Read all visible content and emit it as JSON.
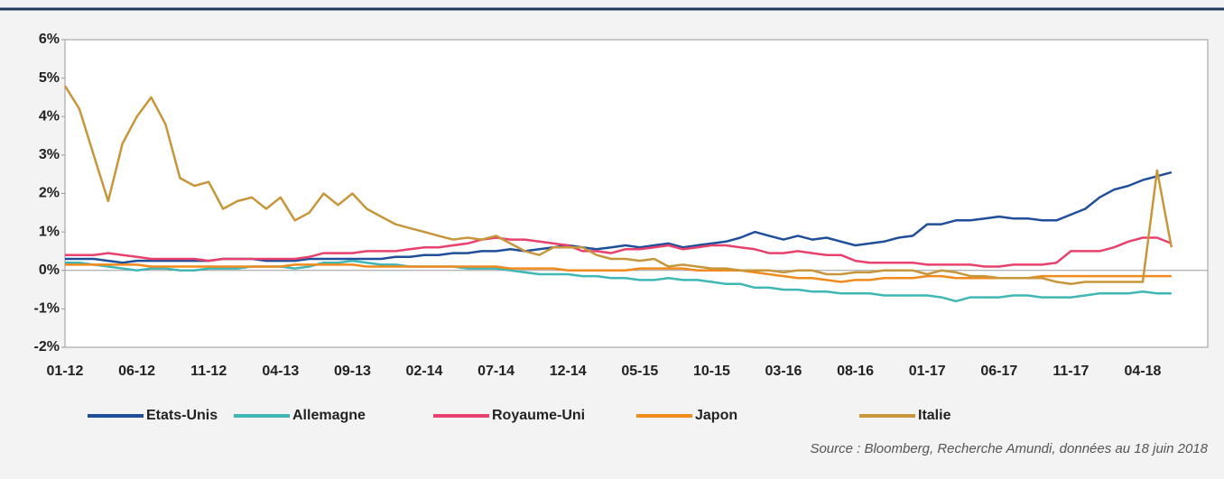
{
  "chart_data": {
    "type": "line",
    "categories": [
      "01-12",
      null,
      null,
      null,
      null,
      "06-12",
      null,
      null,
      null,
      null,
      "11-12",
      null,
      null,
      null,
      null,
      "04-13",
      null,
      null,
      null,
      null,
      "09-13",
      null,
      null,
      null,
      null,
      "02-14",
      null,
      null,
      null,
      null,
      "07-14",
      null,
      null,
      null,
      null,
      "12-14",
      null,
      null,
      null,
      null,
      "05-15",
      null,
      null,
      null,
      null,
      "10-15",
      null,
      null,
      null,
      null,
      "03-16",
      null,
      null,
      null,
      null,
      "08-16",
      null,
      null,
      null,
      null,
      "01-17",
      null,
      null,
      null,
      null,
      "06-17",
      null,
      null,
      null,
      null,
      "11-17",
      null,
      null,
      null,
      null,
      "04-18",
      null,
      null
    ],
    "series": [
      {
        "name": "Etats-Unis",
        "color": "#1f4e9a",
        "values": [
          0.3,
          0.3,
          0.3,
          0.25,
          0.2,
          0.25,
          0.25,
          0.25,
          0.25,
          0.25,
          0.25,
          0.3,
          0.3,
          0.3,
          0.25,
          0.25,
          0.25,
          0.3,
          0.3,
          0.3,
          0.3,
          0.3,
          0.3,
          0.35,
          0.35,
          0.4,
          0.4,
          0.45,
          0.45,
          0.5,
          0.5,
          0.55,
          0.5,
          0.55,
          0.6,
          0.65,
          0.6,
          0.55,
          0.6,
          0.65,
          0.6,
          0.65,
          0.7,
          0.6,
          0.65,
          0.7,
          0.75,
          0.85,
          1.0,
          0.9,
          0.8,
          0.9,
          0.8,
          0.85,
          0.75,
          0.65,
          0.7,
          0.75,
          0.85,
          0.9,
          1.2,
          1.2,
          1.3,
          1.3,
          1.35,
          1.4,
          1.35,
          1.35,
          1.3,
          1.3,
          1.45,
          1.6,
          1.9,
          2.1,
          2.2,
          2.35,
          2.45,
          2.55
        ]
      },
      {
        "name": "Allemagne",
        "color": "#3fb7b5",
        "values": [
          0.2,
          0.2,
          0.15,
          0.1,
          0.05,
          0.0,
          0.05,
          0.05,
          0.0,
          0.0,
          0.05,
          0.05,
          0.05,
          0.1,
          0.1,
          0.1,
          0.05,
          0.1,
          0.2,
          0.2,
          0.25,
          0.2,
          0.15,
          0.15,
          0.1,
          0.1,
          0.1,
          0.1,
          0.05,
          0.05,
          0.05,
          0.0,
          -0.05,
          -0.1,
          -0.1,
          -0.1,
          -0.15,
          -0.15,
          -0.2,
          -0.2,
          -0.25,
          -0.25,
          -0.2,
          -0.25,
          -0.25,
          -0.3,
          -0.35,
          -0.35,
          -0.45,
          -0.45,
          -0.5,
          -0.5,
          -0.55,
          -0.55,
          -0.6,
          -0.6,
          -0.6,
          -0.65,
          -0.65,
          -0.65,
          -0.65,
          -0.7,
          -0.8,
          -0.7,
          -0.7,
          -0.7,
          -0.65,
          -0.65,
          -0.7,
          -0.7,
          -0.7,
          -0.65,
          -0.6,
          -0.6,
          -0.6,
          -0.55,
          -0.6,
          -0.6
        ]
      },
      {
        "name": "Royaume-Uni",
        "color": "#e8416d",
        "values": [
          0.4,
          0.4,
          0.4,
          0.45,
          0.4,
          0.35,
          0.3,
          0.3,
          0.3,
          0.3,
          0.25,
          0.3,
          0.3,
          0.3,
          0.3,
          0.3,
          0.3,
          0.35,
          0.45,
          0.45,
          0.45,
          0.5,
          0.5,
          0.5,
          0.55,
          0.6,
          0.6,
          0.65,
          0.7,
          0.8,
          0.85,
          0.8,
          0.8,
          0.75,
          0.7,
          0.65,
          0.5,
          0.5,
          0.45,
          0.55,
          0.55,
          0.6,
          0.65,
          0.55,
          0.6,
          0.65,
          0.65,
          0.6,
          0.55,
          0.45,
          0.45,
          0.5,
          0.45,
          0.4,
          0.4,
          0.25,
          0.2,
          0.2,
          0.2,
          0.2,
          0.15,
          0.15,
          0.15,
          0.15,
          0.1,
          0.1,
          0.15,
          0.15,
          0.15,
          0.2,
          0.5,
          0.5,
          0.5,
          0.6,
          0.75,
          0.85,
          0.85,
          0.7
        ]
      },
      {
        "name": "Japon",
        "color": "#f08a1c",
        "values": [
          0.15,
          0.15,
          0.15,
          0.15,
          0.15,
          0.15,
          0.1,
          0.1,
          0.1,
          0.1,
          0.1,
          0.1,
          0.1,
          0.1,
          0.1,
          0.1,
          0.15,
          0.15,
          0.15,
          0.15,
          0.15,
          0.1,
          0.1,
          0.1,
          0.1,
          0.1,
          0.1,
          0.1,
          0.1,
          0.1,
          0.1,
          0.05,
          0.05,
          0.05,
          0.05,
          0.0,
          0.0,
          0.0,
          0.0,
          0.0,
          0.05,
          0.05,
          0.05,
          0.05,
          0.0,
          0.0,
          0.0,
          0.0,
          -0.05,
          -0.1,
          -0.15,
          -0.2,
          -0.2,
          -0.25,
          -0.3,
          -0.25,
          -0.25,
          -0.2,
          -0.2,
          -0.2,
          -0.15,
          -0.15,
          -0.2,
          -0.2,
          -0.2,
          -0.2,
          -0.2,
          -0.2,
          -0.15,
          -0.15,
          -0.15,
          -0.15,
          -0.15,
          -0.15,
          -0.15,
          -0.15,
          -0.15,
          -0.15
        ]
      },
      {
        "name": "Italie",
        "color": "#c8963a",
        "values": [
          4.8,
          4.2,
          3.0,
          1.8,
          3.3,
          4.0,
          4.5,
          3.8,
          2.4,
          2.2,
          2.3,
          1.6,
          1.8,
          1.9,
          1.6,
          1.9,
          1.3,
          1.5,
          2.0,
          1.7,
          2.0,
          1.6,
          1.4,
          1.2,
          1.1,
          1.0,
          0.9,
          0.8,
          0.85,
          0.8,
          0.9,
          0.7,
          0.5,
          0.4,
          0.6,
          0.6,
          0.6,
          0.4,
          0.3,
          0.3,
          0.25,
          0.3,
          0.1,
          0.15,
          0.1,
          0.05,
          0.05,
          0.0,
          0.0,
          0.0,
          -0.05,
          0.0,
          0.0,
          -0.1,
          -0.1,
          -0.05,
          -0.05,
          0.0,
          0.0,
          0.0,
          -0.1,
          0.0,
          -0.05,
          -0.15,
          -0.15,
          -0.2,
          -0.2,
          -0.2,
          -0.2,
          -0.3,
          -0.35,
          -0.3,
          -0.3,
          -0.3,
          -0.3,
          -0.3,
          2.6,
          0.6
        ]
      }
    ],
    "ylim": [
      -2,
      6
    ],
    "yticks": [
      {
        "value": -2,
        "label": "-2%"
      },
      {
        "value": -1,
        "label": "-1%"
      },
      {
        "value": 0,
        "label": "0%"
      },
      {
        "value": 1,
        "label": "1%"
      },
      {
        "value": 2,
        "label": "2%"
      },
      {
        "value": 3,
        "label": "3%"
      },
      {
        "value": 4,
        "label": "4%"
      },
      {
        "value": 5,
        "label": "5%"
      },
      {
        "value": 6,
        "label": "6%"
      }
    ],
    "grid": false,
    "source": "Source : Bloomberg, Recherche Amundi, données au 18 juin 2018"
  }
}
